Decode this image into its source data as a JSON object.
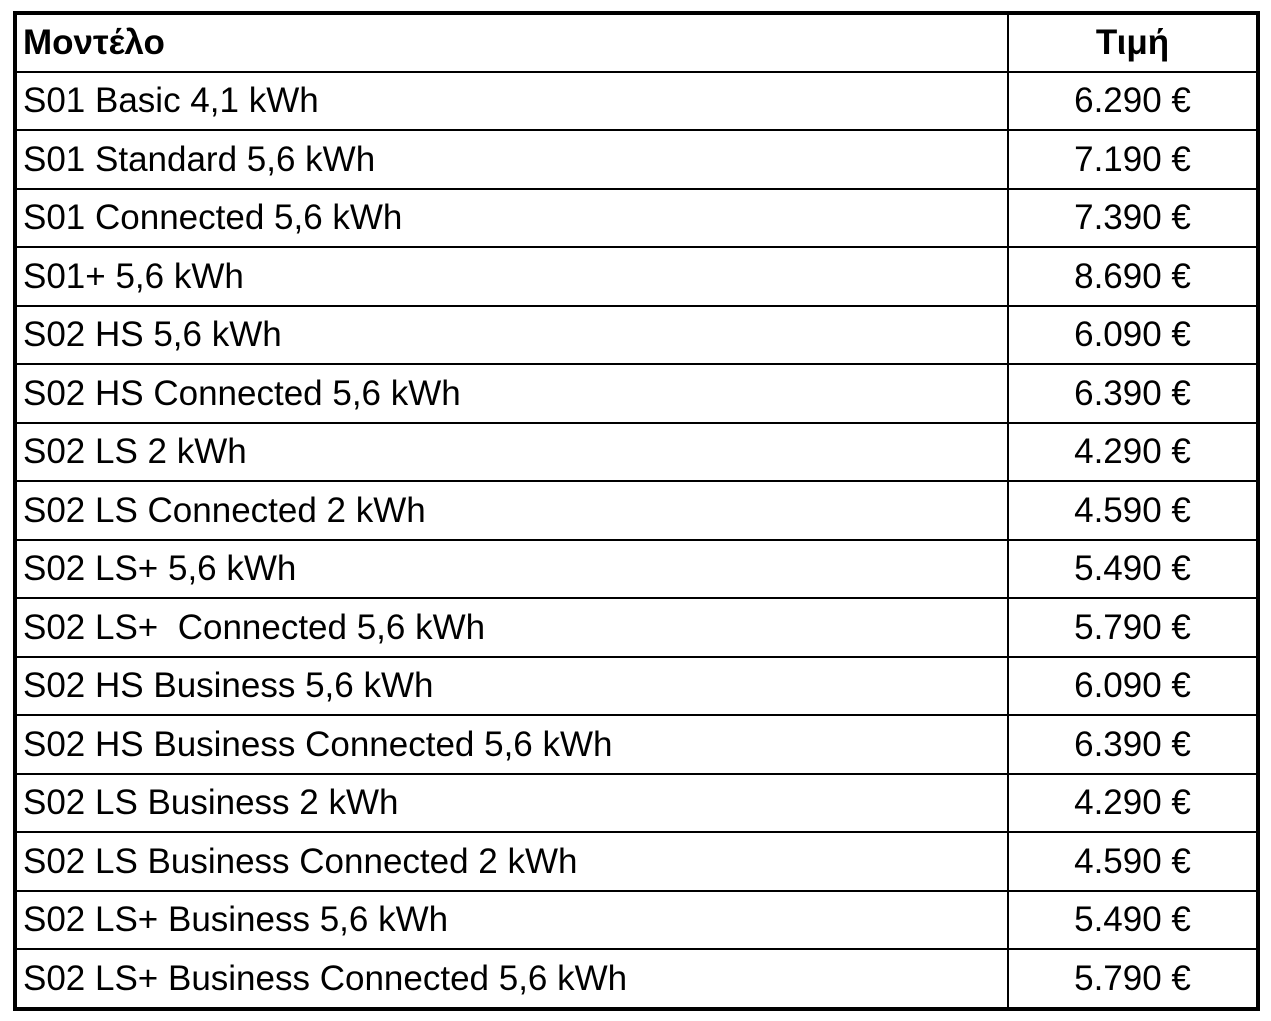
{
  "table": {
    "header": [
      "Μοντέλο",
      "Τιμή"
    ],
    "rows": [
      [
        "S01 Basic 4,1 kWh",
        "6.290 €"
      ],
      [
        "S01 Standard 5,6 kWh",
        "7.190 €"
      ],
      [
        "S01 Connected 5,6 kWh",
        "7.390 €"
      ],
      [
        "S01+ 5,6 kWh",
        "8.690 €"
      ],
      [
        "S02 HS 5,6 kWh",
        "6.090 €"
      ],
      [
        "S02 HS Connected 5,6 kWh",
        "6.390 €"
      ],
      [
        "S02 LS 2 kWh",
        "4.290 €"
      ],
      [
        "S02 LS Connected 2 kWh",
        "4.590 €"
      ],
      [
        "S02 LS+ 5,6 kWh",
        "5.490 €"
      ],
      [
        "S02 LS+  Connected 5,6 kWh",
        "5.790 €"
      ],
      [
        "S02 HS Business 5,6 kWh",
        "6.090 €"
      ],
      [
        "S02 HS Business Connected 5,6 kWh",
        "6.390 €"
      ],
      [
        "S02 LS Business 2 kWh",
        "4.290 €"
      ],
      [
        "S02 LS Business Connected 2 kWh",
        "4.590 €"
      ],
      [
        "S02 LS+ Business 5,6 kWh",
        "5.490 €"
      ],
      [
        "S02 LS+ Business Connected 5,6 kWh",
        "5.790 €"
      ]
    ]
  }
}
